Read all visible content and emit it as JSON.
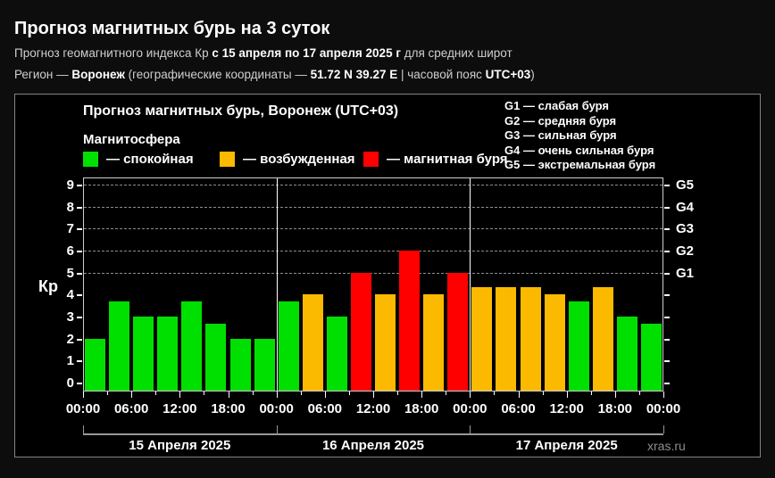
{
  "page": {
    "title": "Прогноз магнитных бурь на 3 суток",
    "subtitle_line1": {
      "normal1": "Прогноз геомагнитного индекса Кр ",
      "bold1": "с 15 апреля по 17 апреля 2025 г",
      "normal2": " для средних широт"
    },
    "subtitle_line2": {
      "normal1": "Регион — ",
      "bold1": "Воронеж",
      "normal2": " (географические координаты — ",
      "bold2": "51.72 N 39.27 E",
      "normal3": " | часовой пояс ",
      "bold3": "UTC+03",
      "normal4": ")"
    },
    "watermark": "xras.ru"
  },
  "chart_data": {
    "type": "bar",
    "title": "Прогноз магнитных бурь, Воронеж (UTC+03)",
    "legend_title": "Магнитосфера",
    "legend": [
      {
        "label": "— спокойная",
        "state": "quiet",
        "color": "#00e000"
      },
      {
        "label": "— возбужденная",
        "state": "excited",
        "color": "#fbba00"
      },
      {
        "label": "— магнитная буря",
        "state": "storm",
        "color": "#ff0000"
      }
    ],
    "g_legend": [
      "G1 — слабая буря",
      "G2 — средняя буря",
      "G3 — сильная буря",
      "G4 — очень сильная буря",
      "G5 — экстремальная буря"
    ],
    "ylabel": "Кр",
    "ylim": [
      0,
      9
    ],
    "yticks": [
      0,
      1,
      2,
      3,
      4,
      5,
      6,
      7,
      8,
      9
    ],
    "right_axis": [
      {
        "label": "G5",
        "kp": 9
      },
      {
        "label": "G4",
        "kp": 8
      },
      {
        "label": "G3",
        "kp": 7
      },
      {
        "label": "G2",
        "kp": 6
      },
      {
        "label": "G1",
        "kp": 5
      }
    ],
    "gridlines_at": [
      5,
      6,
      7,
      8,
      9
    ],
    "hours_per_bar": 3,
    "x_time_labels": [
      "00:00",
      "06:00",
      "12:00",
      "18:00",
      "00:00",
      "06:00",
      "12:00",
      "18:00",
      "00:00",
      "06:00",
      "12:00",
      "18:00",
      "00:00"
    ],
    "state_colors": {
      "quiet": "#00e000",
      "excited": "#fbba00",
      "storm": "#ff0000"
    },
    "days": [
      {
        "date": "15 Апреля 2025",
        "values": [
          2,
          3.67,
          3,
          3,
          3.67,
          2.67,
          2,
          2
        ],
        "states": [
          "quiet",
          "quiet",
          "quiet",
          "quiet",
          "quiet",
          "quiet",
          "quiet",
          "quiet"
        ]
      },
      {
        "date": "16 Апреля 2025",
        "values": [
          3.67,
          4,
          3,
          5,
          4,
          6,
          4,
          5
        ],
        "states": [
          "quiet",
          "excited",
          "quiet",
          "storm",
          "excited",
          "storm",
          "excited",
          "storm"
        ]
      },
      {
        "date": "17 Апреля 2025",
        "values": [
          4.33,
          4.33,
          4.33,
          4,
          3.67,
          4.33,
          3,
          2.67
        ],
        "states": [
          "excited",
          "excited",
          "excited",
          "excited",
          "quiet",
          "excited",
          "quiet",
          "quiet"
        ]
      }
    ],
    "legend_position": "top",
    "grid": "dashed-horizontal-G-levels-only"
  }
}
